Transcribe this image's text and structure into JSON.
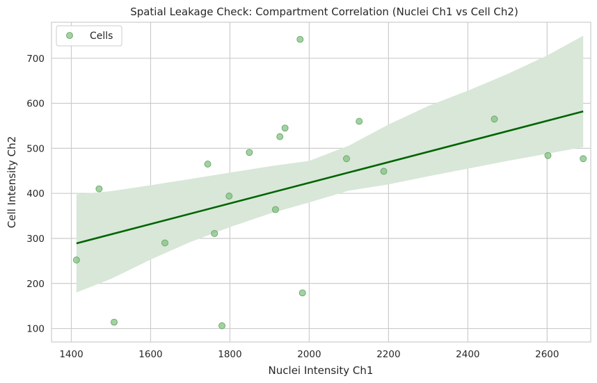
{
  "chart_data": {
    "type": "scatter",
    "title": "Spatial Leakage Check: Compartment Correlation (Nuclei Ch1 vs Cell Ch2)",
    "xlabel": "Nuclei Intensity Ch1",
    "ylabel": "Cell Intensity Ch2",
    "xlim": [
      1350,
      2710
    ],
    "ylim": [
      70,
      780
    ],
    "xticks": [
      1400,
      1600,
      1800,
      2000,
      2200,
      2400,
      2600
    ],
    "yticks": [
      100,
      200,
      300,
      400,
      500,
      600,
      700
    ],
    "xtick_labels": [
      "1400",
      "1600",
      "1800",
      "2000",
      "2200",
      "2400",
      "2600"
    ],
    "ytick_labels": [
      "100",
      "200",
      "300",
      "400",
      "500",
      "600",
      "700"
    ],
    "grid": true,
    "legend": {
      "position": "top-left",
      "entries": [
        "Cells"
      ]
    },
    "series": [
      {
        "name": "Cells",
        "x": [
          1413,
          1470,
          1508,
          1636,
          1744,
          1761,
          1780,
          1798,
          1849,
          1915,
          1926,
          1939,
          1977,
          1983,
          2094,
          2126,
          2188,
          2467,
          2602,
          2691
        ],
        "y": [
          252,
          410,
          114,
          290,
          465,
          311,
          106,
          394,
          491,
          364,
          526,
          545,
          742,
          179,
          477,
          560,
          449,
          565,
          484,
          477
        ]
      }
    ],
    "regression": {
      "x": [
        1413,
        2691
      ],
      "y": [
        289,
        582
      ]
    },
    "confidence_band": {
      "x": [
        1413,
        1500,
        1600,
        1700,
        1800,
        1900,
        2000,
        2100,
        2200,
        2300,
        2400,
        2500,
        2600,
        2691
      ],
      "upper": [
        398,
        405,
        418,
        432,
        446,
        460,
        472,
        506,
        553,
        594,
        628,
        665,
        706,
        750
      ],
      "lower": [
        180,
        210,
        253,
        292,
        325,
        355,
        380,
        406,
        420,
        438,
        455,
        472,
        488,
        503
      ]
    },
    "colors": {
      "point": "#83c183",
      "point_edge": "#5f9e5f",
      "line": "#006400",
      "band": "#d8e7d8",
      "grid": "#cccccc"
    }
  }
}
